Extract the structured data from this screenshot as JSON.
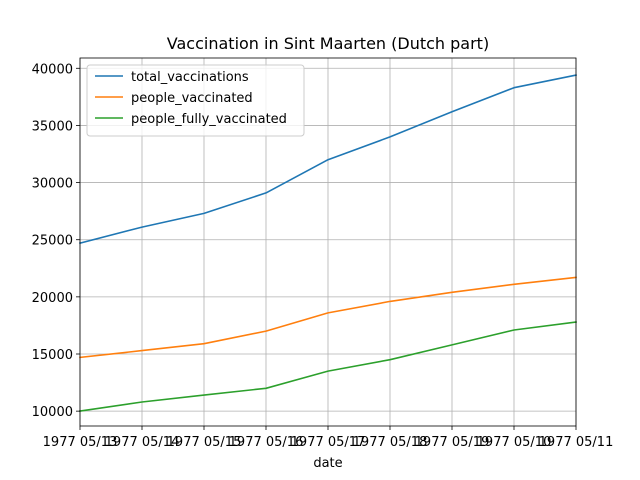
{
  "chart_data": {
    "type": "line",
    "title": "Vaccination in Sint Maarten (Dutch part)",
    "xlabel": "date",
    "ylabel": "",
    "x": [
      "1977 05/13",
      "1977 05/14",
      "1977 05/15",
      "1977 05/16",
      "1977 05/17",
      "1977 05/18",
      "1977 05/19",
      "1977 05/10",
      "1977 05/11"
    ],
    "xtick_labels": [
      "1977 05/13",
      "1977 05/14",
      "1977 05/15",
      "1977 05/16",
      "1977 05/17",
      "1977 05/18",
      "1977 05/19",
      "1977 05/10",
      "1977 05/11"
    ],
    "yticks": [
      10000,
      15000,
      20000,
      25000,
      30000,
      35000,
      40000
    ],
    "ylim": [
      8700,
      40900
    ],
    "grid": true,
    "legend_position": "top-left",
    "series": [
      {
        "name": "total_vaccinations",
        "color": "#1f77b4",
        "values": [
          24700,
          26100,
          27300,
          29100,
          32000,
          34000,
          36200,
          38300,
          39400
        ]
      },
      {
        "name": "people_vaccinated",
        "color": "#ff7f0e",
        "values": [
          14700,
          15300,
          15900,
          17000,
          18600,
          19600,
          20400,
          21100,
          21700
        ]
      },
      {
        "name": "people_fully_vaccinated",
        "color": "#2ca02c",
        "values": [
          10000,
          10800,
          11400,
          12000,
          13500,
          14500,
          15800,
          17100,
          17800
        ]
      }
    ]
  }
}
